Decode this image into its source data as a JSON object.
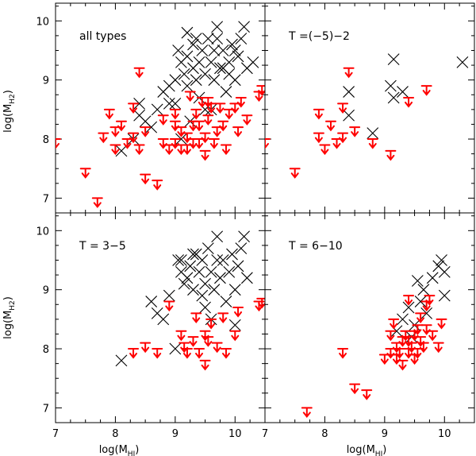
{
  "chart_data": {
    "type": "scatter",
    "layout": "2x2 grid",
    "xlabel": "log(M",
    "xlabel_sub": "HI",
    "xlabel_close": ")",
    "ylabel": "log(M",
    "ylabel_sub": "H2",
    "ylabel_close": ")",
    "xlim": [
      7,
      10.5
    ],
    "ylim": [
      6.75,
      10.3
    ],
    "xticks": [
      "7",
      "8",
      "9",
      "10"
    ],
    "yticks": [
      "7",
      "8",
      "9",
      "10"
    ],
    "colors": {
      "detection": "#000000",
      "upper_limit": "#ff0000"
    },
    "panels": [
      {
        "title": "all types",
        "position": "top-left",
        "detections": [
          [
            8.1,
            7.8
          ],
          [
            8.3,
            8.0
          ],
          [
            8.4,
            8.4
          ],
          [
            8.4,
            8.6
          ],
          [
            8.5,
            8.3
          ],
          [
            8.6,
            8.2
          ],
          [
            8.7,
            8.5
          ],
          [
            8.8,
            8.8
          ],
          [
            8.9,
            8.6
          ],
          [
            9.0,
            9.0
          ],
          [
            9.05,
            9.5
          ],
          [
            9.1,
            9.3
          ],
          [
            9.15,
            9.1
          ],
          [
            9.2,
            8.9
          ],
          [
            9.2,
            9.4
          ],
          [
            9.3,
            9.2
          ],
          [
            9.3,
            9.6
          ],
          [
            9.35,
            9.0
          ],
          [
            9.4,
            9.3
          ],
          [
            9.4,
            8.7
          ],
          [
            9.45,
            9.5
          ],
          [
            9.5,
            9.1
          ],
          [
            9.55,
            9.7
          ],
          [
            9.6,
            9.3
          ],
          [
            9.6,
            8.5
          ],
          [
            9.65,
            9.0
          ],
          [
            9.7,
            9.9
          ],
          [
            9.75,
            9.2
          ],
          [
            9.8,
            9.5
          ],
          [
            9.85,
            8.8
          ],
          [
            9.9,
            9.3
          ],
          [
            9.95,
            9.6
          ],
          [
            10.0,
            9.0
          ],
          [
            10.05,
            9.4
          ],
          [
            10.1,
            9.7
          ],
          [
            10.15,
            9.9
          ],
          [
            10.2,
            9.2
          ],
          [
            10.3,
            9.3
          ],
          [
            9.1,
            8.0
          ],
          [
            9.0,
            8.6
          ],
          [
            9.25,
            8.3
          ],
          [
            9.5,
            8.5
          ],
          [
            9.7,
            9.7
          ],
          [
            9.9,
            9.1
          ],
          [
            10.0,
            9.5
          ],
          [
            9.35,
            9.7
          ],
          [
            9.65,
            9.5
          ],
          [
            9.8,
            9.2
          ],
          [
            8.9,
            8.9
          ],
          [
            9.2,
            9.8
          ]
        ],
        "upper_limits": [
          [
            7.0,
            8.0
          ],
          [
            7.5,
            7.5
          ],
          [
            7.7,
            7.0
          ],
          [
            7.8,
            8.1
          ],
          [
            7.9,
            8.5
          ],
          [
            8.0,
            8.2
          ],
          [
            8.0,
            7.9
          ],
          [
            8.1,
            8.3
          ],
          [
            8.2,
            8.0
          ],
          [
            8.3,
            8.6
          ],
          [
            8.3,
            8.1
          ],
          [
            8.4,
            7.9
          ],
          [
            8.5,
            8.2
          ],
          [
            8.5,
            7.4
          ],
          [
            8.7,
            7.3
          ],
          [
            8.8,
            8.0
          ],
          [
            8.8,
            8.4
          ],
          [
            8.9,
            7.9
          ],
          [
            9.0,
            8.0
          ],
          [
            9.0,
            8.3
          ],
          [
            9.1,
            7.9
          ],
          [
            9.1,
            8.2
          ],
          [
            9.2,
            8.1
          ],
          [
            9.2,
            7.9
          ],
          [
            9.3,
            8.0
          ],
          [
            9.3,
            8.3
          ],
          [
            9.35,
            8.5
          ],
          [
            9.4,
            8.0
          ],
          [
            9.4,
            8.3
          ],
          [
            9.45,
            8.7
          ],
          [
            9.5,
            8.1
          ],
          [
            9.5,
            7.8
          ],
          [
            9.55,
            8.4
          ],
          [
            9.6,
            8.6
          ],
          [
            9.65,
            8.0
          ],
          [
            9.7,
            8.2
          ],
          [
            9.75,
            8.6
          ],
          [
            9.8,
            8.3
          ],
          [
            9.85,
            7.9
          ],
          [
            9.9,
            8.5
          ],
          [
            10.0,
            8.6
          ],
          [
            10.05,
            8.2
          ],
          [
            10.1,
            8.7
          ],
          [
            10.2,
            8.4
          ],
          [
            10.4,
            8.8
          ],
          [
            10.45,
            8.9
          ],
          [
            8.4,
            9.2
          ],
          [
            9.25,
            8.8
          ],
          [
            9.55,
            8.7
          ],
          [
            9.0,
            8.5
          ]
        ]
      },
      {
        "title": "T =(−5)−2",
        "position": "top-right",
        "detections": [
          [
            8.4,
            8.4
          ],
          [
            8.4,
            8.8
          ],
          [
            8.8,
            8.1
          ],
          [
            9.1,
            8.9
          ],
          [
            9.15,
            8.7
          ],
          [
            9.15,
            9.35
          ],
          [
            9.3,
            8.8
          ],
          [
            10.3,
            9.3
          ]
        ],
        "upper_limits": [
          [
            7.0,
            8.0
          ],
          [
            7.5,
            7.5
          ],
          [
            7.9,
            8.5
          ],
          [
            7.9,
            8.1
          ],
          [
            8.0,
            7.9
          ],
          [
            8.1,
            8.3
          ],
          [
            8.2,
            8.0
          ],
          [
            8.3,
            8.1
          ],
          [
            8.3,
            8.6
          ],
          [
            8.4,
            9.2
          ],
          [
            8.5,
            8.2
          ],
          [
            8.8,
            8.0
          ],
          [
            9.1,
            7.8
          ],
          [
            9.4,
            8.7
          ],
          [
            9.7,
            8.9
          ]
        ]
      },
      {
        "title": "T = 3−5",
        "position": "bottom-left",
        "detections": [
          [
            8.1,
            7.8
          ],
          [
            8.6,
            8.8
          ],
          [
            8.7,
            8.6
          ],
          [
            8.8,
            8.5
          ],
          [
            8.9,
            8.9
          ],
          [
            9.0,
            8.0
          ],
          [
            9.05,
            9.5
          ],
          [
            9.1,
            9.3
          ],
          [
            9.15,
            9.1
          ],
          [
            9.2,
            9.2
          ],
          [
            9.25,
            9.4
          ],
          [
            9.3,
            9.0
          ],
          [
            9.3,
            9.6
          ],
          [
            9.4,
            9.3
          ],
          [
            9.45,
            9.5
          ],
          [
            9.5,
            8.7
          ],
          [
            9.5,
            9.1
          ],
          [
            9.55,
            9.7
          ],
          [
            9.6,
            9.3
          ],
          [
            9.6,
            8.5
          ],
          [
            9.65,
            9.0
          ],
          [
            9.7,
            9.9
          ],
          [
            9.75,
            9.2
          ],
          [
            9.8,
            9.5
          ],
          [
            9.85,
            8.8
          ],
          [
            9.9,
            9.3
          ],
          [
            9.95,
            9.6
          ],
          [
            10.0,
            9.0
          ],
          [
            10.05,
            9.4
          ],
          [
            10.1,
            9.7
          ],
          [
            10.15,
            9.9
          ],
          [
            10.2,
            9.2
          ],
          [
            9.1,
            9.5
          ],
          [
            9.35,
            9.6
          ],
          [
            9.45,
            8.9
          ],
          [
            9.7,
            9.5
          ],
          [
            10.0,
            8.4
          ]
        ],
        "upper_limits": [
          [
            8.3,
            8.0
          ],
          [
            8.5,
            8.1
          ],
          [
            8.7,
            8.0
          ],
          [
            8.9,
            8.8
          ],
          [
            9.1,
            8.3
          ],
          [
            9.15,
            8.1
          ],
          [
            9.2,
            8.0
          ],
          [
            9.3,
            8.2
          ],
          [
            9.35,
            8.6
          ],
          [
            9.4,
            8.0
          ],
          [
            9.5,
            8.3
          ],
          [
            9.5,
            7.8
          ],
          [
            9.6,
            8.5
          ],
          [
            9.7,
            8.1
          ],
          [
            9.8,
            8.6
          ],
          [
            9.85,
            8.0
          ],
          [
            10.0,
            8.3
          ],
          [
            10.05,
            8.7
          ],
          [
            10.4,
            8.8
          ],
          [
            10.45,
            8.85
          ],
          [
            9.55,
            8.2
          ]
        ]
      },
      {
        "title": "T = 6−10",
        "position": "bottom-right",
        "detections": [
          [
            9.3,
            8.5
          ],
          [
            9.45,
            8.2
          ],
          [
            9.5,
            8.4
          ],
          [
            9.55,
            9.15
          ],
          [
            9.6,
            8.8
          ],
          [
            9.65,
            9.0
          ],
          [
            9.7,
            8.6
          ],
          [
            9.8,
            9.2
          ],
          [
            9.9,
            9.4
          ],
          [
            9.95,
            9.5
          ],
          [
            10.0,
            8.9
          ],
          [
            10.0,
            9.3
          ],
          [
            9.2,
            8.3
          ],
          [
            9.4,
            8.7
          ]
        ],
        "upper_limits": [
          [
            7.7,
            7.0
          ],
          [
            8.3,
            8.0
          ],
          [
            8.5,
            7.4
          ],
          [
            8.7,
            7.3
          ],
          [
            9.0,
            7.9
          ],
          [
            9.1,
            8.0
          ],
          [
            9.1,
            8.3
          ],
          [
            9.15,
            8.5
          ],
          [
            9.2,
            7.9
          ],
          [
            9.2,
            8.1
          ],
          [
            9.25,
            8.0
          ],
          [
            9.3,
            8.2
          ],
          [
            9.3,
            7.8
          ],
          [
            9.35,
            8.3
          ],
          [
            9.4,
            8.0
          ],
          [
            9.4,
            8.2
          ],
          [
            9.45,
            8.1
          ],
          [
            9.5,
            7.9
          ],
          [
            9.5,
            8.3
          ],
          [
            9.55,
            8.0
          ],
          [
            9.6,
            8.2
          ],
          [
            9.6,
            8.6
          ],
          [
            9.65,
            8.1
          ],
          [
            9.7,
            8.4
          ],
          [
            9.7,
            8.8
          ],
          [
            9.75,
            8.9
          ],
          [
            9.8,
            8.3
          ],
          [
            9.9,
            8.1
          ],
          [
            9.95,
            8.5
          ],
          [
            9.4,
            8.9
          ],
          [
            9.55,
            8.4
          ]
        ]
      }
    ]
  }
}
